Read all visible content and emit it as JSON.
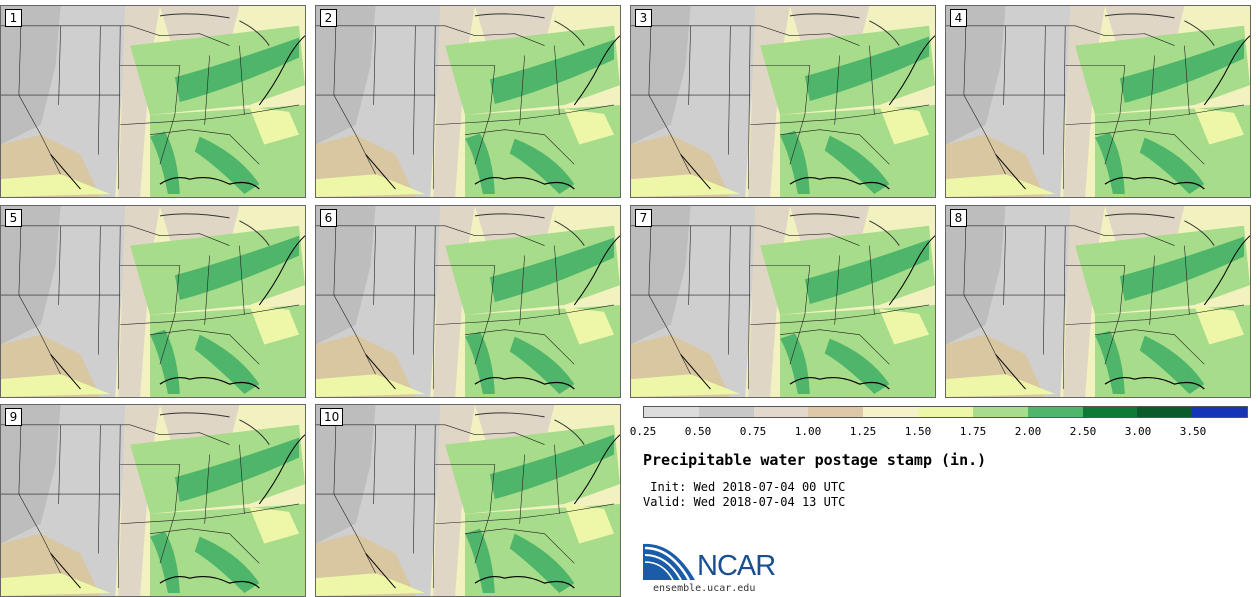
{
  "panels": [
    {
      "label": "1"
    },
    {
      "label": "2"
    },
    {
      "label": "3"
    },
    {
      "label": "4"
    },
    {
      "label": "5"
    },
    {
      "label": "6"
    },
    {
      "label": "7"
    },
    {
      "label": "8"
    },
    {
      "label": "9"
    },
    {
      "label": "10"
    }
  ],
  "colorbar": {
    "colors": [
      "#dcdcdc",
      "#c8c8c8",
      "#e2d9cc",
      "#ddc9a7",
      "#f4f2c8",
      "#eef7a8",
      "#a6dc8a",
      "#4fb56a",
      "#0e7a35",
      "#0b5a2a",
      "#1534b8"
    ],
    "ticks": [
      "0.25",
      "0.50",
      "0.75",
      "1.00",
      "1.25",
      "1.50",
      "1.75",
      "2.00",
      "2.50",
      "3.00",
      "3.50"
    ]
  },
  "title": "Precipitable water postage stamp (in.)",
  "init": " Init: Wed 2018-07-04 00 UTC",
  "valid": "Valid: Wed 2018-07-04 13 UTC",
  "logo": {
    "text": "NCAR",
    "site": "ensemble.ucar.edu"
  }
}
